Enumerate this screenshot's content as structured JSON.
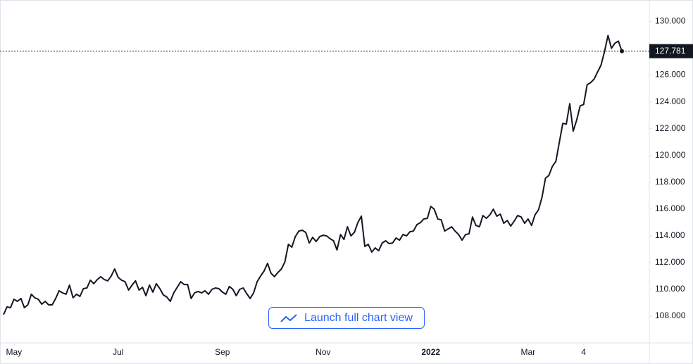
{
  "chart_data": {
    "type": "line",
    "color": "#131722",
    "values": [
      108.11,
      108.68,
      108.63,
      109.26,
      109.1,
      109.31,
      108.63,
      108.84,
      109.63,
      109.37,
      109.26,
      108.89,
      109.1,
      108.84,
      108.84,
      109.31,
      109.89,
      109.73,
      109.63,
      110.31,
      109.37,
      109.63,
      109.47,
      110.05,
      110.1,
      110.68,
      110.42,
      110.73,
      110.94,
      110.73,
      110.63,
      110.99,
      111.52,
      110.89,
      110.68,
      110.57,
      109.94,
      110.31,
      110.63,
      109.94,
      110.15,
      109.52,
      110.31,
      109.79,
      110.42,
      110.05,
      109.58,
      109.42,
      109.1,
      109.73,
      110.15,
      110.57,
      110.36,
      110.36,
      109.31,
      109.73,
      109.84,
      109.73,
      109.89,
      109.63,
      110.0,
      110.1,
      110.05,
      109.79,
      109.63,
      110.21,
      110.0,
      109.52,
      110.0,
      110.1,
      109.68,
      109.31,
      109.73,
      110.57,
      110.99,
      111.36,
      111.94,
      111.2,
      110.94,
      111.26,
      111.52,
      112.04,
      113.36,
      113.15,
      113.93,
      114.35,
      114.41,
      114.25,
      113.46,
      113.88,
      113.57,
      113.93,
      114.04,
      113.99,
      113.78,
      113.62,
      112.94,
      114.09,
      113.72,
      114.67,
      113.99,
      114.25,
      114.98,
      115.46,
      113.2,
      113.36,
      112.78,
      113.09,
      112.88,
      113.46,
      113.62,
      113.41,
      113.46,
      113.83,
      113.67,
      114.09,
      113.99,
      114.3,
      114.35,
      114.83,
      114.98,
      115.25,
      115.3,
      116.19,
      115.98,
      115.25,
      115.19,
      114.35,
      114.51,
      114.67,
      114.35,
      114.09,
      113.67,
      114.09,
      114.14,
      115.4,
      114.77,
      114.67,
      115.51,
      115.3,
      115.56,
      115.98,
      115.46,
      115.61,
      114.93,
      115.14,
      114.72,
      115.09,
      115.51,
      115.4,
      114.93,
      115.25,
      114.77,
      115.56,
      115.93,
      116.87,
      118.29,
      118.5,
      119.18,
      119.55,
      120.97,
      122.39,
      122.33,
      123.86,
      121.81,
      122.65,
      123.7,
      123.8,
      125.27,
      125.43,
      125.69,
      126.22,
      126.74,
      127.74,
      128.95,
      128.0,
      128.37,
      128.53,
      127.781
    ],
    "ylim": [
      106,
      131.6
    ],
    "yticks": [
      {
        "value": 108,
        "label": "108.000"
      },
      {
        "value": 110,
        "label": "110.000"
      },
      {
        "value": 112,
        "label": "112.000"
      },
      {
        "value": 114,
        "label": "114.000"
      },
      {
        "value": 116,
        "label": "116.000"
      },
      {
        "value": 118,
        "label": "118.000"
      },
      {
        "value": 120,
        "label": "120.000"
      },
      {
        "value": 122,
        "label": "122.000"
      },
      {
        "value": 124,
        "label": "124.000"
      },
      {
        "value": 126,
        "label": "126.000"
      },
      {
        "value": 128,
        "label": "128.000"
      },
      {
        "value": 130,
        "label": "130.000"
      }
    ],
    "xticks": [
      {
        "value": 3,
        "label": "May"
      },
      {
        "value": 33,
        "label": "Jul"
      },
      {
        "value": 63,
        "label": "Sep"
      },
      {
        "value": 92,
        "label": "Nov"
      },
      {
        "value": 123,
        "label": "2022"
      },
      {
        "value": 151,
        "label": "Mar"
      },
      {
        "value": 167,
        "label": "4"
      }
    ]
  },
  "button": "Launch full chart view"
}
